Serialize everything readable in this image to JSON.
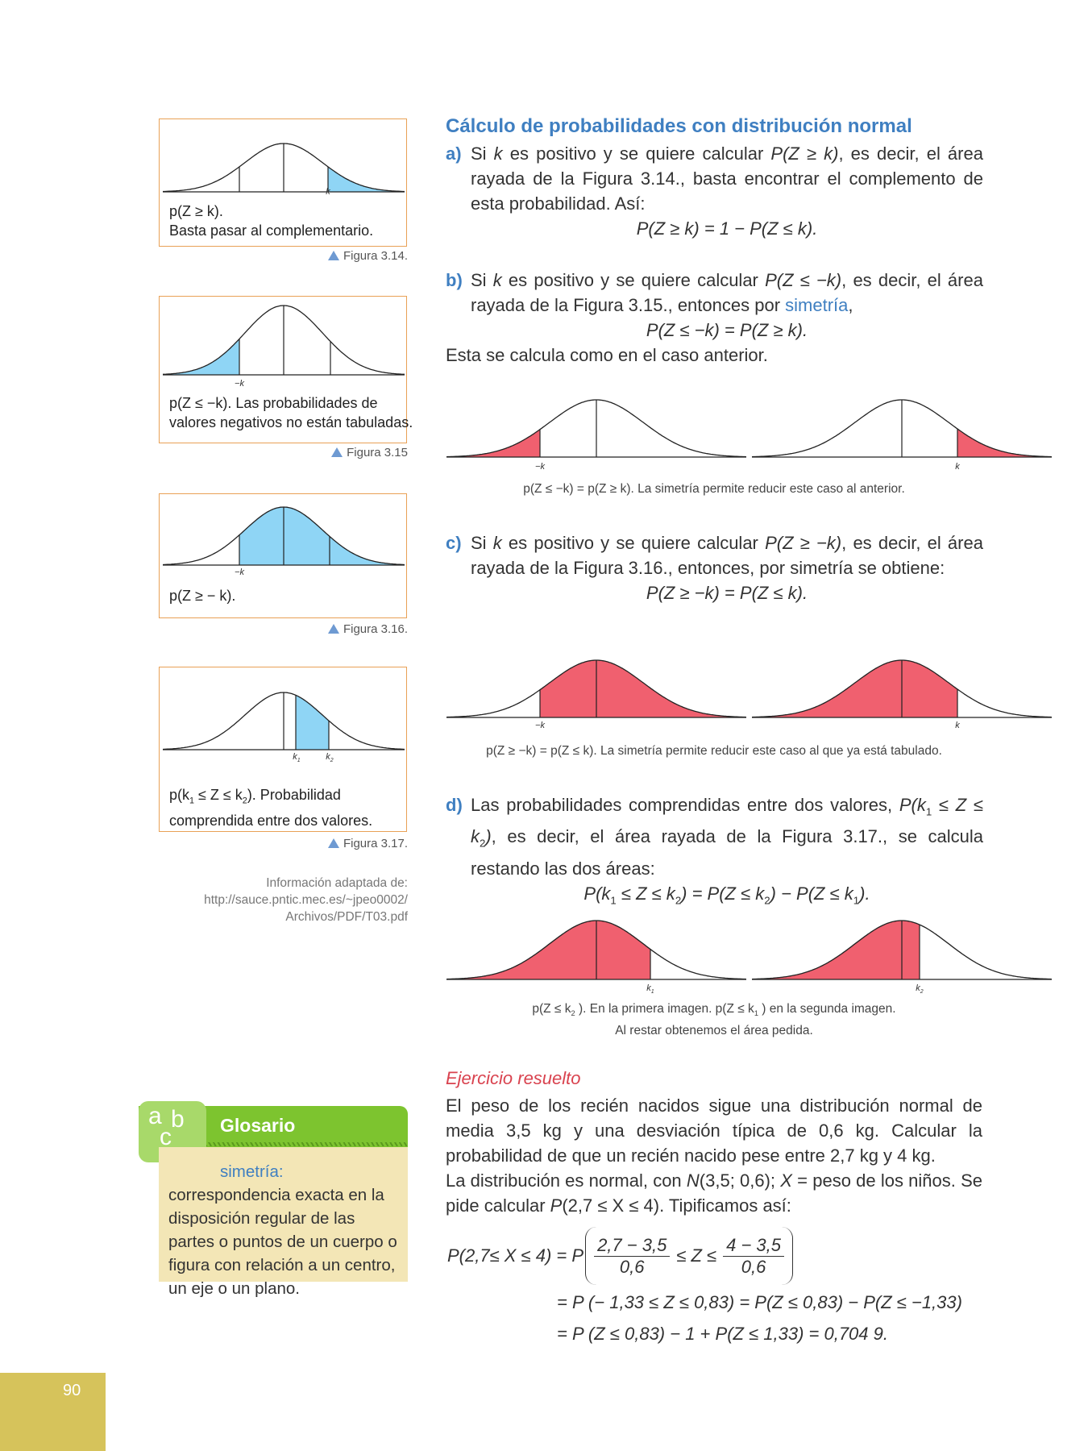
{
  "heading": "Cálculo de probabilidades con distribución normal",
  "figures": [
    {
      "caption_lines": [
        [
          "p(Z ≥ k)."
        ],
        [
          "Basta pasar al complementario."
        ]
      ],
      "axis_labels": [
        [
          "k"
        ]
      ],
      "label": "Figura 3.14."
    },
    {
      "caption_lines": [
        [
          "p(Z ≤ −k). Las probabilidades de"
        ],
        [
          "valores negativos no están tabuladas."
        ]
      ],
      "axis_labels": [
        [
          "−k"
        ]
      ],
      "label": "Figura 3.15"
    },
    {
      "caption_lines": [
        [
          "p(Z ≥ − k)."
        ]
      ],
      "axis_labels": [
        [
          "−k"
        ]
      ],
      "label": "Figura 3.16."
    },
    {
      "caption_lines": [
        [
          "p(k",
          {
            "sub": "1"
          },
          " ≤ Z ≤ k",
          {
            "sub": "2"
          },
          ").  Probabilidad"
        ],
        [
          "comprendida entre dos valores."
        ]
      ],
      "axis_labels": [
        [
          "k",
          {
            "sub": "1"
          }
        ],
        [
          "k",
          {
            "sub": "2"
          }
        ]
      ],
      "label": "Figura 3.17."
    }
  ],
  "source": [
    "Información adaptada de:",
    "http://sauce.pntic.mec.es/~jpeo0002/",
    "Archivos/PDF/T03.pdf"
  ],
  "items": [
    {
      "letter": "a)",
      "text": [
        "Si ",
        {
          "i": "k"
        },
        " es positivo y se quiere calcular ",
        {
          "i": "P(Z ≥ k)"
        },
        ", es decir, el área rayada de la Figura 3.14., basta encontrar el complemento de esta probabilidad. Así:"
      ],
      "formula": [
        {
          "i": "P(Z ≥ k) = 1 − P(Z ≤ k)."
        }
      ]
    },
    {
      "letter": "b)",
      "text": [
        "Si ",
        {
          "i": "k"
        },
        " es positivo y se quiere calcular ",
        {
          "i": "P(Z ≤ −k)"
        },
        ", es decir, el área rayada de la Figura 3.15., entonces por ",
        {
          "c": "simetría"
        },
        ","
      ],
      "formula": [
        {
          "i": "P(Z ≤ −k) = P(Z ≥ k)."
        }
      ]
    },
    {
      "letter": "c)",
      "text": [
        "Si ",
        {
          "i": "k"
        },
        " es positivo y se quiere calcular ",
        {
          "i": "P(Z ≥ −k)"
        },
        ", es decir, el área rayada de la Figura 3.16., entonces, por simetría se obtiene:"
      ],
      "formula": [
        {
          "i": "P(Z ≥ −k) = P(Z ≤ k)."
        }
      ]
    },
    {
      "letter": "d)",
      "text": [
        "Las probabilidades comprendidas entre dos valores, ",
        {
          "i": "P(k"
        },
        {
          "sub": "1"
        },
        {
          "i": " ≤ Z ≤ k"
        },
        {
          "sub": "2"
        },
        {
          "i": ")"
        },
        ", es decir, el área rayada de la Figura 3.17., se calcula restando las dos áreas:"
      ],
      "formula": [
        {
          "i": "P(k"
        },
        {
          "sub": "1"
        },
        {
          "i": " ≤ Z ≤ k"
        },
        {
          "sub": "2"
        },
        {
          "i": ") = P(Z ≤ k"
        },
        {
          "sub": "2"
        },
        {
          "i": ") − P(Z ≤ k"
        },
        {
          "sub": "1"
        },
        {
          "i": ")."
        }
      ]
    }
  ],
  "b_note": "Esta se calcula como en el caso anterior.",
  "pairs": [
    {
      "axis_labels": [
        [
          "−k"
        ],
        [
          "k"
        ]
      ],
      "caption_lines": [
        [
          "p(Z ≤ −k) = p(Z ≥ k). La simetría permite reducir este caso al anterior."
        ]
      ]
    },
    {
      "axis_labels": [
        [
          "−k"
        ],
        [
          "k"
        ]
      ],
      "caption_lines": [
        [
          "p(Z ≥ −k) = p(Z ≤ k). La simetría permite reducir este caso al que ya está tabulado."
        ]
      ]
    },
    {
      "axis_labels": [
        [
          "k",
          {
            "sub": "1"
          }
        ],
        [
          "k",
          {
            "sub": "2"
          }
        ]
      ],
      "caption_lines": [
        [
          "p(Z ≤ k",
          {
            "sub": "2"
          },
          " ). En la primera imagen. p(Z ≤ k",
          {
            "sub": "1"
          },
          " ) en la segunda imagen."
        ],
        [
          "Al restar obtenemos el área pedida."
        ]
      ]
    }
  ],
  "exercise": {
    "title": "Ejercicio resuelto",
    "paragraphs": [
      [
        "El peso de los recién nacidos sigue una distribución normal de media 3,5 kg y una desviación típica de 0,6 kg. Calcular la probabilidad de que un recién nacido pese entre 2,7 kg y 4 kg."
      ],
      [
        "La distribución es normal, con ",
        {
          "i": "N"
        },
        "(3,5; 0,6); ",
        {
          "i": "X"
        },
        " = peso de los niños. Se pide calcular ",
        {
          "i": "P"
        },
        "(2,7 ≤ X ≤ 4). Tipificamos así:"
      ]
    ],
    "math": {
      "lhs": "P(2,7≤ X ≤ 4) = P",
      "frac1": {
        "num": "2,7 − 3,5",
        "den": "0,6"
      },
      "middle": "≤ Z ≤",
      "frac2": {
        "num": "4 − 3,5",
        "den": "0,6"
      },
      "lines": [
        "= P (− 1,33 ≤ Z ≤ 0,83) = P(Z ≤ 0,83) − P(Z ≤ −1,33)",
        "= P (Z ≤ 0,83) − 1 + P(Z ≤ 1,33) = 0,704 9."
      ]
    }
  },
  "glossary": {
    "icon_letters": [
      "a",
      "b",
      "c"
    ],
    "title": "Glosario",
    "term": "simetría:",
    "definition": "correspondencia exacta en la disposición regular de las partes o puntos de un cuerpo o figura con relación a un centro, un eje o un plano."
  },
  "page_number": "90"
}
